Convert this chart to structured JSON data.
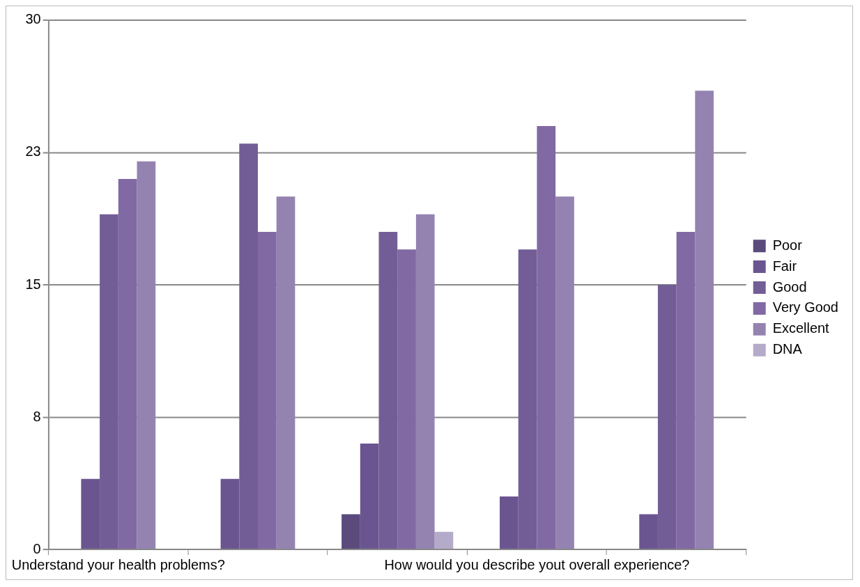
{
  "chart_data": {
    "type": "bar",
    "categories": [
      "Understand your health problems?",
      null,
      null,
      "How would you describe yout overall experience?",
      null
    ],
    "series": [
      {
        "name": "Poor",
        "color": "#5b4a7c",
        "values": [
          0,
          0,
          2,
          0,
          0
        ]
      },
      {
        "name": "Fair",
        "color": "#6a5591",
        "values": [
          4,
          4,
          6,
          3,
          2
        ]
      },
      {
        "name": "Good",
        "color": "#735d96",
        "values": [
          19,
          23,
          18,
          17,
          15
        ]
      },
      {
        "name": "Very Good",
        "color": "#8169a3",
        "values": [
          21,
          18,
          17,
          24,
          18
        ]
      },
      {
        "name": "Excellent",
        "color": "#9483b1",
        "values": [
          22,
          20,
          19,
          20,
          26
        ]
      },
      {
        "name": "DNA",
        "color": "#b4aac9",
        "values": [
          0,
          0,
          1,
          0,
          0
        ]
      }
    ],
    "ylim": [
      0,
      30
    ],
    "yticks": [
      0,
      {
        "value": 7.5,
        "label": "8"
      },
      15,
      {
        "value": 22.5,
        "label": "23"
      },
      30
    ],
    "grid": "y",
    "legend": "right"
  }
}
